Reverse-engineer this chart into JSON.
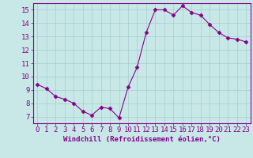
{
  "x": [
    0,
    1,
    2,
    3,
    4,
    5,
    6,
    7,
    8,
    9,
    10,
    11,
    12,
    13,
    14,
    15,
    16,
    17,
    18,
    19,
    20,
    21,
    22,
    23
  ],
  "y": [
    9.4,
    9.1,
    8.5,
    8.3,
    8.0,
    7.4,
    7.1,
    7.7,
    7.6,
    6.9,
    9.2,
    10.7,
    13.3,
    15.0,
    15.0,
    14.6,
    15.3,
    14.8,
    14.6,
    13.9,
    13.3,
    12.9,
    12.8,
    12.6
  ],
  "line_color": "#880088",
  "marker": "D",
  "marker_size": 2.5,
  "bg_color": "#c8e8e8",
  "grid_color": "#a8cccc",
  "xlabel": "Windchill (Refroidissement éolien,°C)",
  "xlim": [
    -0.5,
    23.5
  ],
  "ylim": [
    6.5,
    15.5
  ],
  "yticks": [
    7,
    8,
    9,
    10,
    11,
    12,
    13,
    14,
    15
  ],
  "xticks": [
    0,
    1,
    2,
    3,
    4,
    5,
    6,
    7,
    8,
    9,
    10,
    11,
    12,
    13,
    14,
    15,
    16,
    17,
    18,
    19,
    20,
    21,
    22,
    23
  ],
  "label_fontsize": 6.5,
  "tick_fontsize": 6.5
}
